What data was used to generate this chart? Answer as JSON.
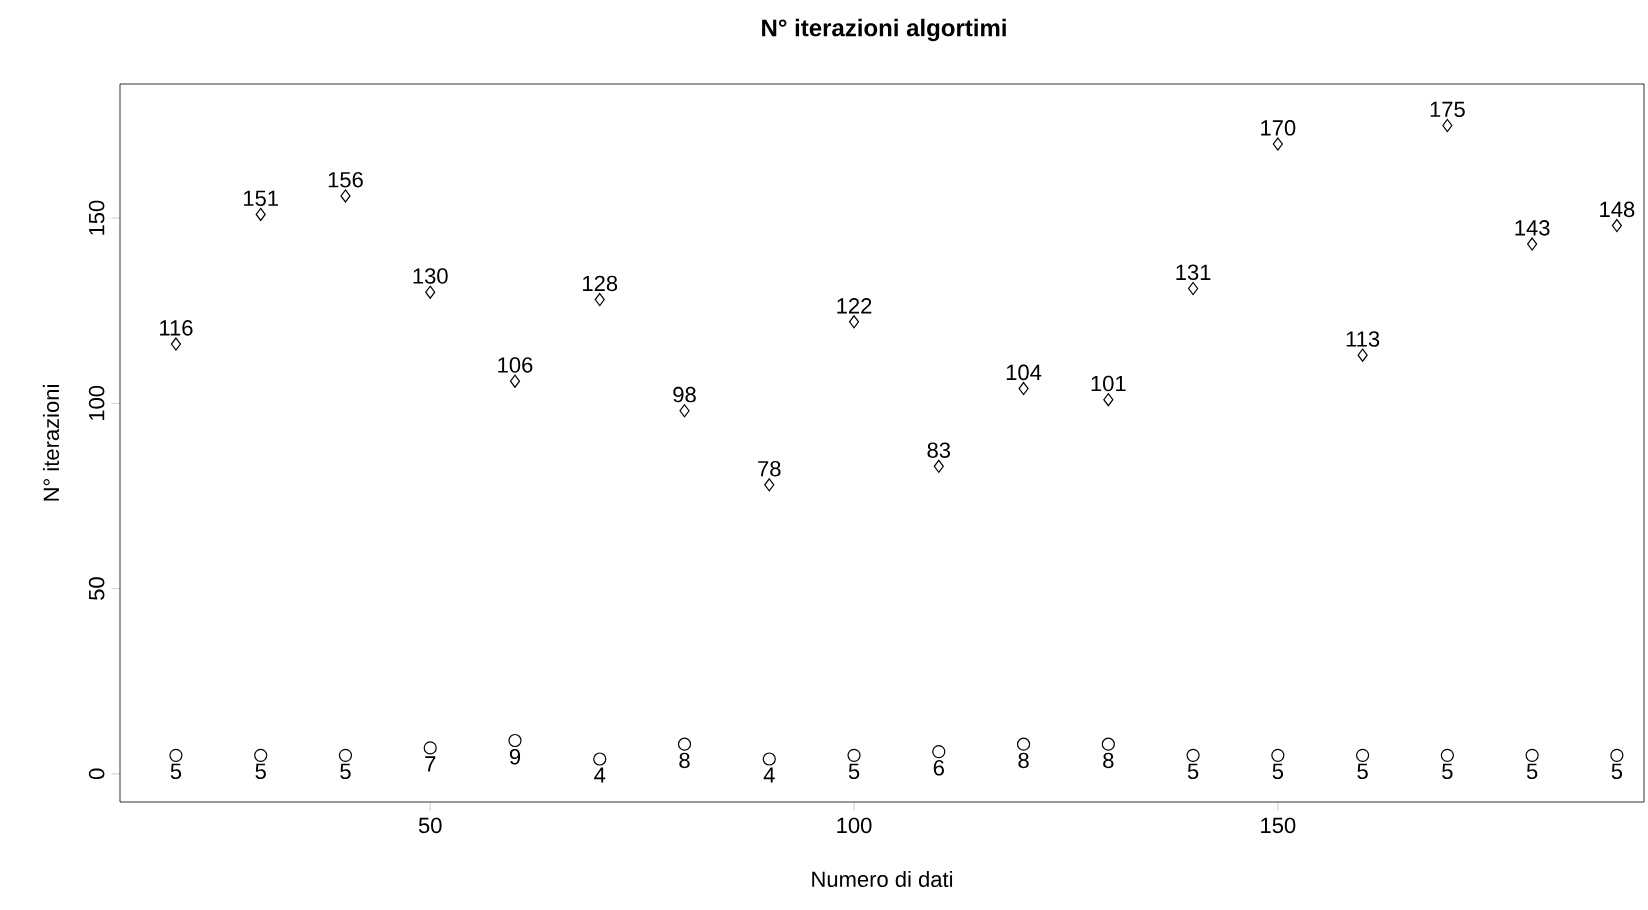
{
  "chart_data": {
    "type": "scatter",
    "title": "N° iterazioni algortimi",
    "xlabel": "Numero di dati",
    "ylabel": "N° iterazioni",
    "x": [
      20,
      30,
      40,
      50,
      60,
      70,
      80,
      90,
      100,
      110,
      120,
      130,
      140,
      150,
      160,
      170,
      180,
      190
    ],
    "series": [
      {
        "color": "#000000",
        "marker": "diamond",
        "values": [
          116,
          151,
          156,
          130,
          106,
          128,
          98,
          78,
          122,
          83,
          104,
          101,
          131,
          170,
          113,
          175,
          143,
          148
        ]
      },
      {
        "color": "#000000",
        "marker": "circle",
        "values": [
          5,
          5,
          5,
          7,
          9,
          4,
          8,
          4,
          5,
          6,
          8,
          8,
          5,
          5,
          5,
          5,
          5,
          5
        ]
      }
    ],
    "xlim": [
      13.4,
      193.2
    ],
    "ylim": [
      -7.6,
      186.2
    ],
    "xticks": [
      50,
      100,
      150
    ],
    "yticks": [
      0,
      50,
      100,
      150
    ],
    "data_labels": true,
    "grid": false
  }
}
